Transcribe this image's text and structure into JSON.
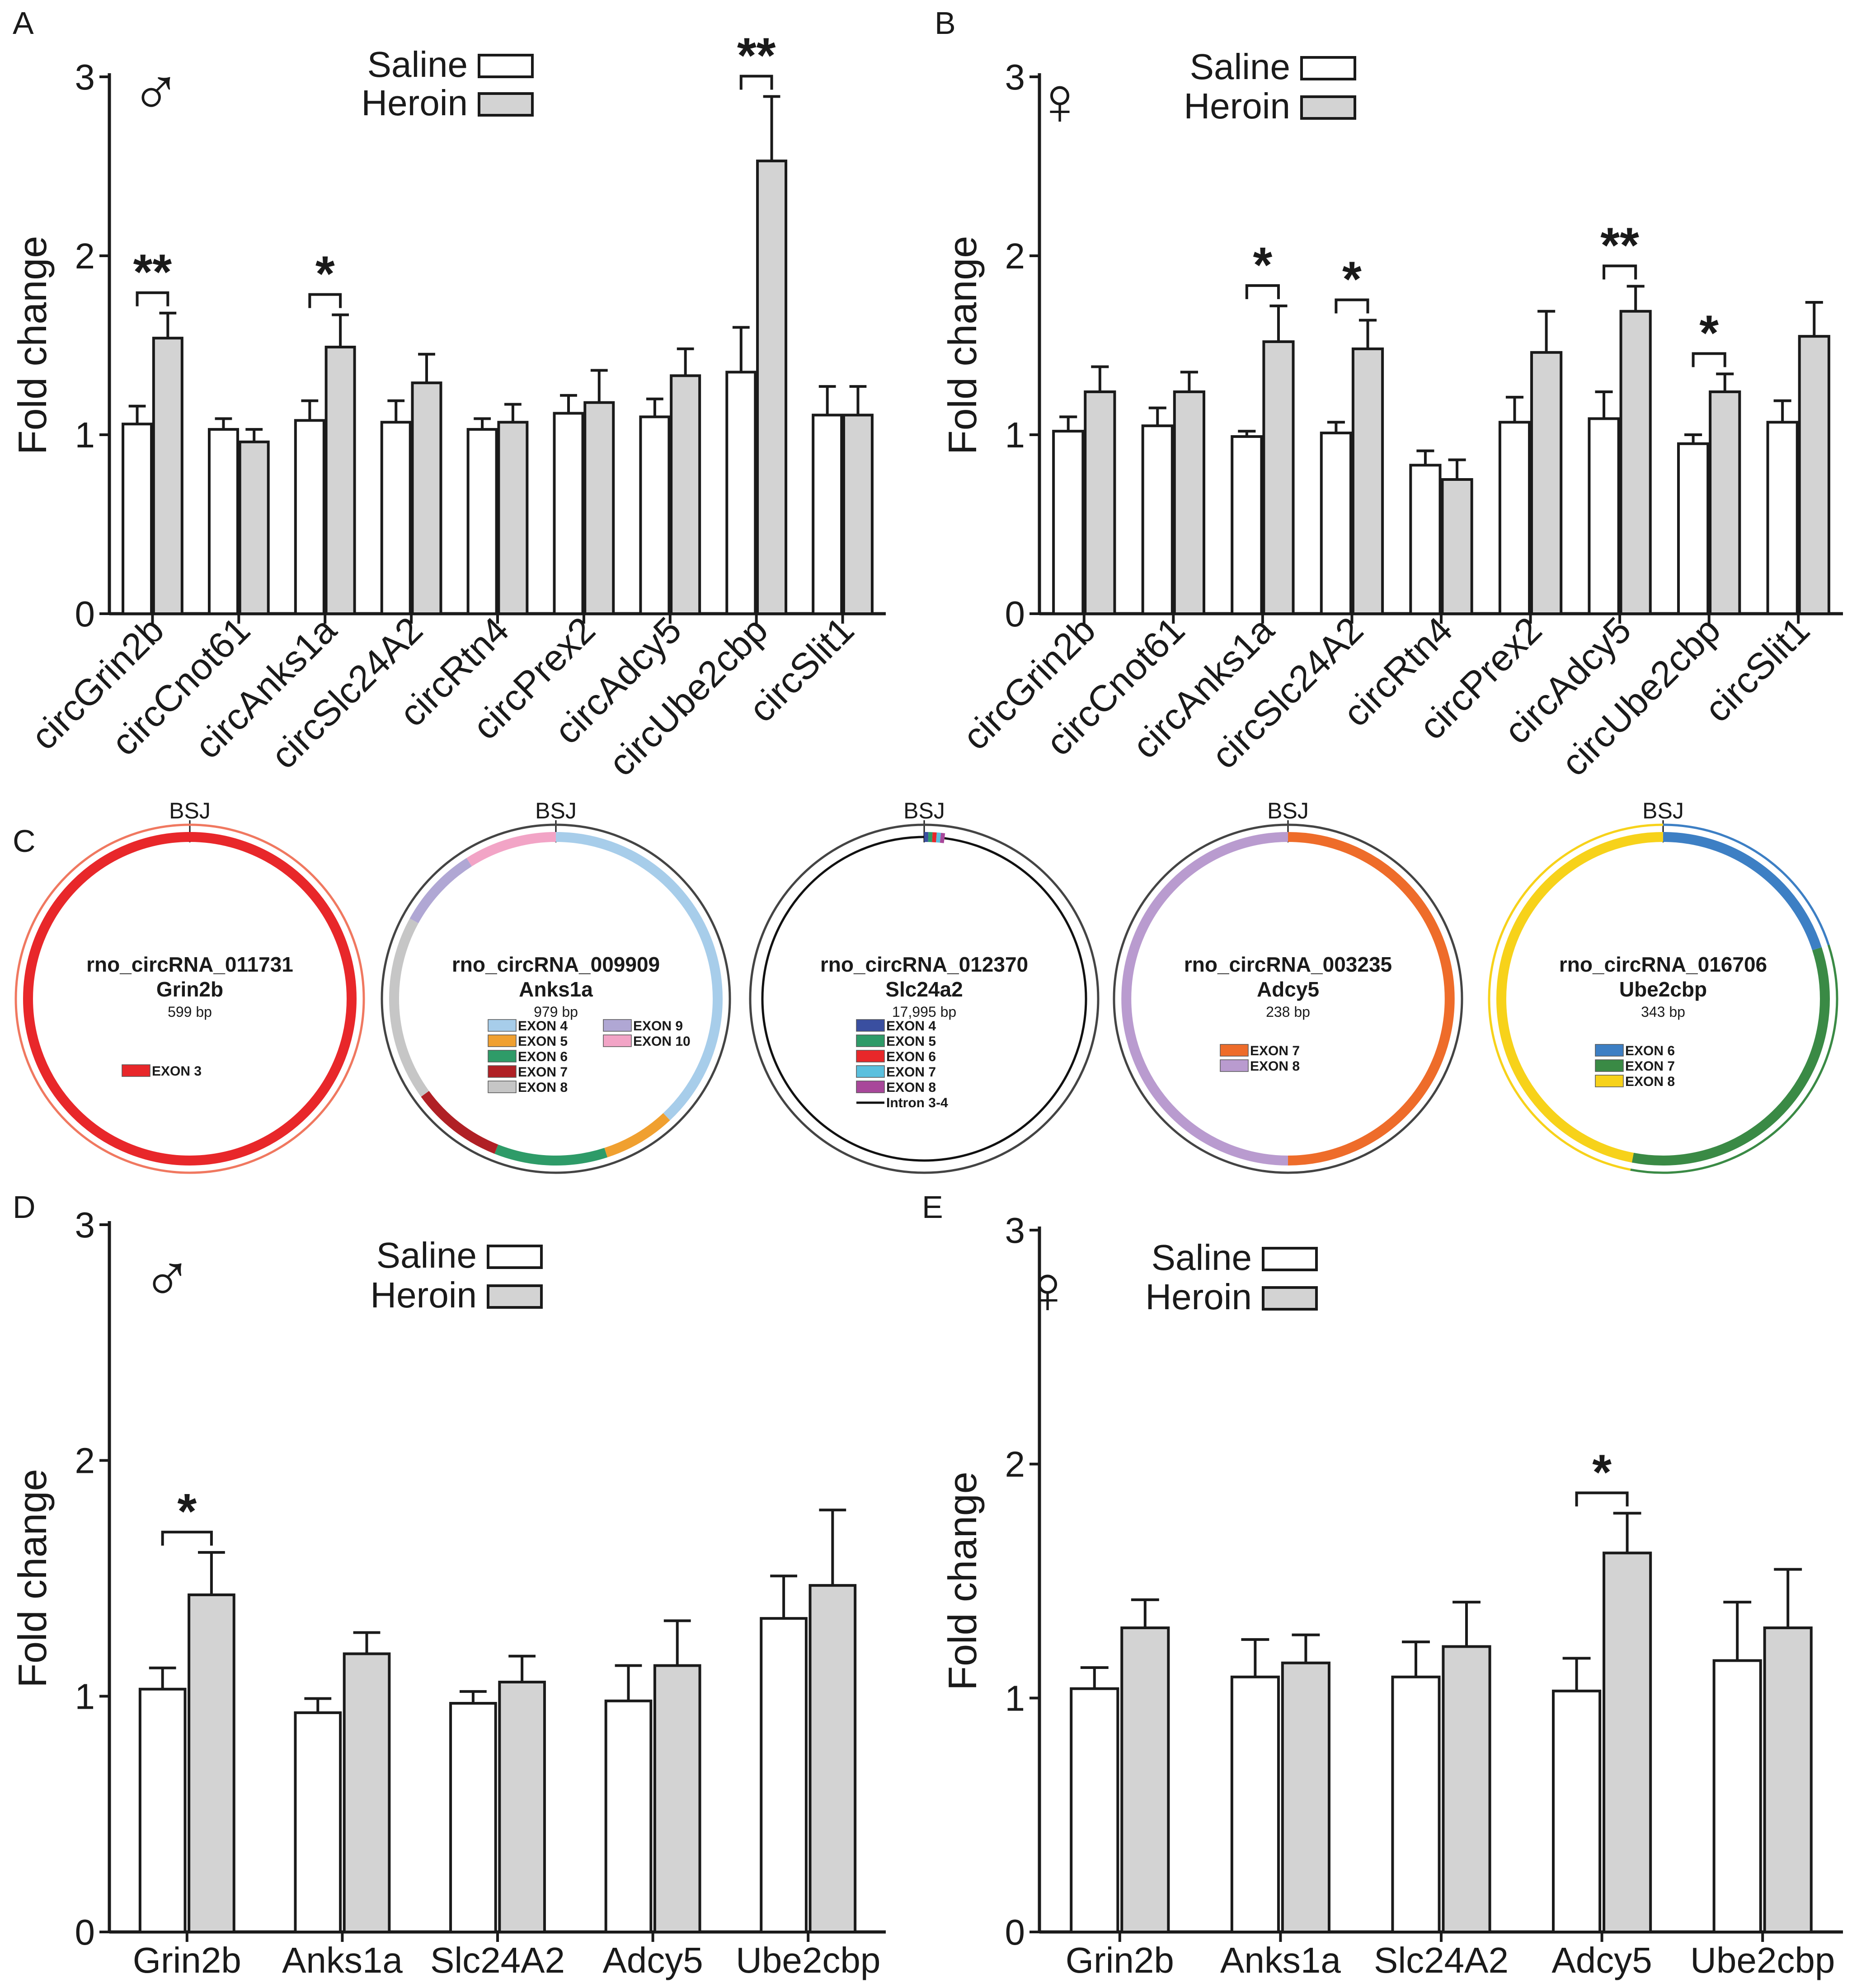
{
  "chart_data": [
    {
      "id": "A",
      "type": "bar",
      "panel_label": "A",
      "sex_symbol": "♂",
      "ylabel": "Fold change",
      "ylim": [
        0,
        3
      ],
      "yticks": [
        "0",
        "1",
        "2",
        "3"
      ],
      "legend": [
        "Saline",
        "Heroin"
      ],
      "legend_position": "top-center",
      "categories": [
        "circGrin2b",
        "circCnot61",
        "circAnks1a",
        "circSlc24A2",
        "circRtn4",
        "circPrex2",
        "circAdcy5",
        "circUbe2cbp",
        "circSlit1"
      ],
      "series": [
        {
          "name": "Saline",
          "color": "#ffffff",
          "values": [
            1.06,
            1.03,
            1.08,
            1.07,
            1.03,
            1.12,
            1.1,
            1.35,
            1.11
          ],
          "errors": [
            0.1,
            0.06,
            0.11,
            0.12,
            0.06,
            0.1,
            0.1,
            0.25,
            0.16
          ]
        },
        {
          "name": "Heroin",
          "color": "#d3d3d3",
          "values": [
            1.54,
            0.96,
            1.49,
            1.29,
            1.07,
            1.18,
            1.33,
            2.53,
            1.11
          ],
          "errors": [
            0.14,
            0.07,
            0.18,
            0.16,
            0.1,
            0.18,
            0.15,
            0.36,
            0.16
          ]
        }
      ],
      "significance": [
        {
          "category": 0,
          "label": "**"
        },
        {
          "category": 2,
          "label": "*"
        },
        {
          "category": 7,
          "label": "**"
        }
      ]
    },
    {
      "id": "B",
      "type": "bar",
      "panel_label": "B",
      "sex_symbol": "♀",
      "ylabel": "Fold change",
      "ylim": [
        0,
        3
      ],
      "yticks": [
        "0",
        "1",
        "2",
        "3"
      ],
      "legend": [
        "Saline",
        "Heroin"
      ],
      "legend_position": "top-center",
      "categories": [
        "circGrin2b",
        "circCnot61",
        "circAnks1a",
        "circSlc24A2",
        "circRtn4",
        "circPrex2",
        "circAdcy5",
        "circUbe2cbp",
        "circSlit1"
      ],
      "series": [
        {
          "name": "Saline",
          "color": "#ffffff",
          "values": [
            1.02,
            1.05,
            0.99,
            1.01,
            0.83,
            1.07,
            1.09,
            0.95,
            1.07
          ],
          "errors": [
            0.08,
            0.1,
            0.03,
            0.06,
            0.08,
            0.14,
            0.15,
            0.05,
            0.12
          ]
        },
        {
          "name": "Heroin",
          "color": "#d3d3d3",
          "values": [
            1.24,
            1.24,
            1.52,
            1.48,
            0.75,
            1.46,
            1.69,
            1.24,
            1.55
          ],
          "errors": [
            0.14,
            0.11,
            0.2,
            0.16,
            0.11,
            0.23,
            0.14,
            0.1,
            0.19
          ]
        }
      ],
      "significance": [
        {
          "category": 2,
          "label": "*"
        },
        {
          "category": 3,
          "label": "*"
        },
        {
          "category": 6,
          "label": "**"
        },
        {
          "category": 7,
          "label": "*"
        }
      ]
    },
    {
      "id": "D",
      "type": "bar",
      "panel_label": "D",
      "sex_symbol": "♂",
      "ylabel": "Fold change",
      "ylim": [
        0,
        3
      ],
      "yticks": [
        "0",
        "1",
        "2",
        "3"
      ],
      "legend": [
        "Saline",
        "Heroin"
      ],
      "legend_position": "top-center",
      "categories": [
        "Grin2b",
        "Anks1a",
        "Slc24A2",
        "Adcy5",
        "Ube2cbp"
      ],
      "series": [
        {
          "name": "Saline",
          "color": "#ffffff",
          "values": [
            1.03,
            0.93,
            0.97,
            0.98,
            1.33
          ],
          "errors": [
            0.09,
            0.06,
            0.05,
            0.15,
            0.18
          ]
        },
        {
          "name": "Heroin",
          "color": "#d3d3d3",
          "values": [
            1.43,
            1.18,
            1.06,
            1.13,
            1.47
          ],
          "errors": [
            0.18,
            0.09,
            0.11,
            0.19,
            0.32
          ]
        }
      ],
      "significance": [
        {
          "category": 0,
          "label": "*"
        }
      ]
    },
    {
      "id": "E",
      "type": "bar",
      "panel_label": "E",
      "sex_symbol": "♀",
      "ylabel": "Fold change",
      "ylim": [
        0,
        3
      ],
      "yticks": [
        "0",
        "1",
        "2",
        "3"
      ],
      "legend": [
        "Saline",
        "Heroin"
      ],
      "legend_position": "top-center",
      "categories": [
        "Grin2b",
        "Anks1a",
        "Slc24A2",
        "Adcy5",
        "Ube2cbp"
      ],
      "series": [
        {
          "name": "Saline",
          "color": "#ffffff",
          "values": [
            1.04,
            1.09,
            1.09,
            1.03,
            1.16
          ],
          "errors": [
            0.09,
            0.16,
            0.15,
            0.14,
            0.25
          ]
        },
        {
          "name": "Heroin",
          "color": "#d3d3d3",
          "values": [
            1.3,
            1.15,
            1.22,
            1.62,
            1.3
          ],
          "errors": [
            0.12,
            0.12,
            0.19,
            0.17,
            0.25
          ]
        }
      ],
      "significance": [
        {
          "category": 3,
          "label": "*"
        }
      ]
    }
  ],
  "circle_panel": {
    "panel_label": "C",
    "bsj_label": "BSJ",
    "circles": [
      {
        "name": "rno_circRNA_011731",
        "gene": "Grin2b",
        "size": "599 bp",
        "outer_color": "#f07860",
        "segments": [
          {
            "label": "EXON 3",
            "color": "#e8272a",
            "fraction": 1.0
          }
        ],
        "legend_columns": [
          [
            "EXON 3"
          ]
        ]
      },
      {
        "name": "rno_circRNA_009909",
        "gene": "Anks1a",
        "size": "979 bp",
        "outer_color": "#444444",
        "segments": [
          {
            "label": "EXON 4",
            "color": "#a7cdea",
            "fraction": 0.38
          },
          {
            "label": "EXON 5",
            "color": "#f0a030",
            "fraction": 0.07
          },
          {
            "label": "EXON 6",
            "color": "#2e9b68",
            "fraction": 0.11
          },
          {
            "label": "EXON 7",
            "color": "#b02025",
            "fraction": 0.09
          },
          {
            "label": "EXON 8",
            "color": "#c6c6c6",
            "fraction": 0.18
          },
          {
            "label": "EXON 9",
            "color": "#b0a7d4",
            "fraction": 0.08
          },
          {
            "label": "EXON 10",
            "color": "#f2a4c6",
            "fraction": 0.09
          }
        ],
        "legend_columns": [
          [
            "EXON 4",
            "EXON 5",
            "EXON 6",
            "EXON 7",
            "EXON 8"
          ],
          [
            "EXON 9",
            "EXON 10"
          ]
        ]
      },
      {
        "name": "rno_circRNA_012370",
        "gene": "Slc24a2",
        "size": "17,995 bp",
        "outer_color": "#444444",
        "segments": [
          {
            "label": "EXON 4",
            "color": "#3a4fa0",
            "fraction": 0.004
          },
          {
            "label": "EXON 5",
            "color": "#2e9b68",
            "fraction": 0.004
          },
          {
            "label": "EXON 6",
            "color": "#e8272a",
            "fraction": 0.004
          },
          {
            "label": "EXON 7",
            "color": "#5bc0de",
            "fraction": 0.004
          },
          {
            "label": "EXON 8",
            "color": "#a8479a",
            "fraction": 0.004
          },
          {
            "label": "Intron 3-4",
            "color": "#111111",
            "fraction": 0.98
          }
        ],
        "legend_columns": [
          [
            "EXON 4",
            "EXON 5",
            "EXON 6",
            "EXON 7",
            "EXON 8",
            "Intron 3-4"
          ]
        ]
      },
      {
        "name": "rno_circRNA_003235",
        "gene": "Adcy5",
        "size": "238 bp",
        "outer_color": "#444444",
        "segments": [
          {
            "label": "EXON 7",
            "color": "#ee6c2a",
            "fraction": 0.5
          },
          {
            "label": "EXON 8",
            "color": "#b99bcf",
            "fraction": 0.5
          }
        ],
        "legend_columns": [
          [
            "EXON 7",
            "EXON 8"
          ]
        ]
      },
      {
        "name": "rno_circRNA_016706",
        "gene": "Ube2cbp",
        "size": "343 bp",
        "outer_color": "multi",
        "segments": [
          {
            "label": "EXON 6",
            "color": "#3d7fc4",
            "fraction": 0.2
          },
          {
            "label": "EXON 7",
            "color": "#3a8a45",
            "fraction": 0.33
          },
          {
            "label": "EXON 8",
            "color": "#f7d21a",
            "fraction": 0.47
          }
        ],
        "legend_columns": [
          [
            "EXON 6",
            "EXON 7",
            "EXON 8"
          ]
        ]
      }
    ]
  }
}
